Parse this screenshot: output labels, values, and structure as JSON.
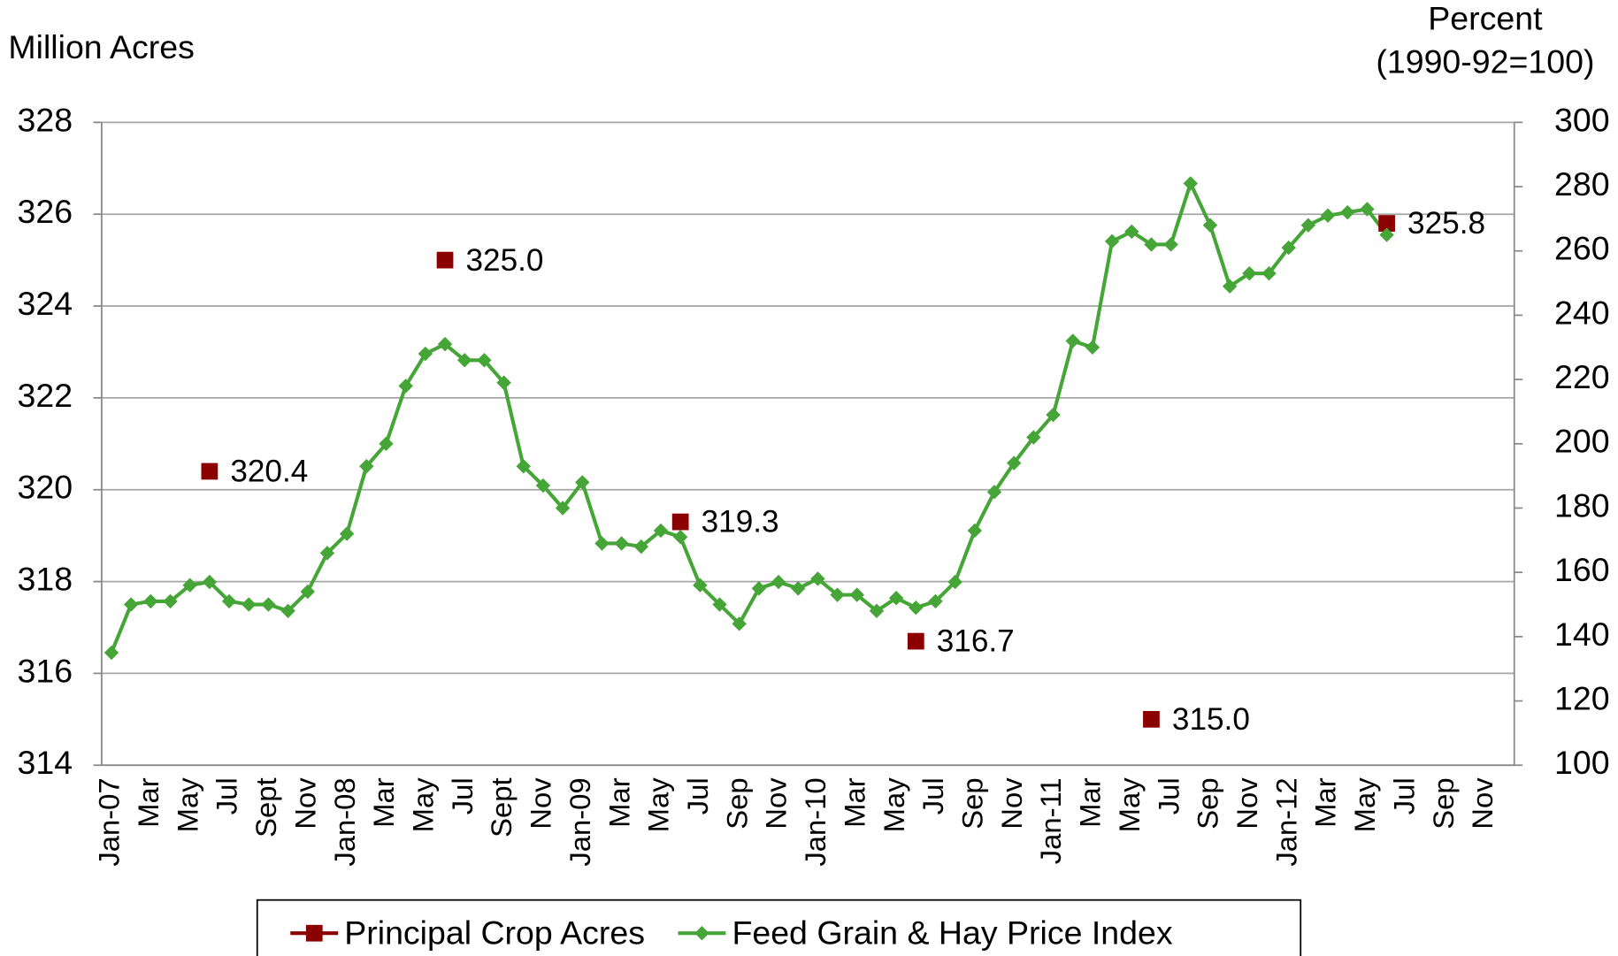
{
  "chart_data": {
    "type": "line",
    "y_label": "Million Acres",
    "y2_label": [
      "Percent",
      "(1990-92=100)"
    ],
    "categories": [
      "Jan-07",
      null,
      "Mar",
      null,
      "May",
      null,
      "Jul",
      null,
      "Sept",
      null,
      "Nov",
      null,
      "Jan-08",
      null,
      "Mar",
      null,
      "May",
      null,
      "Jul",
      null,
      "Sept",
      null,
      "Nov",
      null,
      "Jan-09",
      null,
      "Mar",
      null,
      "May",
      null,
      "Jul",
      null,
      "Sep",
      null,
      "Nov",
      null,
      "Jan-10",
      null,
      "Mar",
      null,
      "May",
      null,
      "Jul",
      null,
      "Sep",
      null,
      "Nov",
      null,
      "Jan-11",
      null,
      "Mar",
      null,
      "May",
      null,
      "Jul",
      null,
      "Sep",
      null,
      "Nov",
      null,
      "Jan-12",
      null,
      "Mar",
      null,
      "May",
      null,
      "Jul",
      null,
      "Sep",
      null,
      "Nov",
      null
    ],
    "series": [
      {
        "name": "Principal Crop Acres",
        "color": "#8b0000",
        "marker": "square",
        "values": [
          null,
          null,
          null,
          null,
          null,
          320.4,
          null,
          null,
          null,
          null,
          null,
          null,
          null,
          null,
          null,
          null,
          null,
          325.0,
          null,
          null,
          null,
          null,
          null,
          null,
          null,
          null,
          null,
          null,
          null,
          319.3,
          null,
          null,
          null,
          null,
          null,
          null,
          null,
          null,
          null,
          null,
          null,
          316.7,
          null,
          null,
          null,
          null,
          null,
          null,
          null,
          null,
          null,
          null,
          null,
          315.0,
          null,
          null,
          null,
          null,
          null,
          null,
          null,
          null,
          null,
          null,
          null,
          325.8,
          null,
          null,
          null,
          null,
          null,
          null
        ],
        "value_labels": [
          null,
          null,
          null,
          null,
          null,
          "320.4",
          null,
          null,
          null,
          null,
          null,
          null,
          null,
          null,
          null,
          null,
          null,
          "325.0",
          null,
          null,
          null,
          null,
          null,
          null,
          null,
          null,
          null,
          null,
          null,
          "319.3",
          null,
          null,
          null,
          null,
          null,
          null,
          null,
          null,
          null,
          null,
          null,
          "316.7",
          null,
          null,
          null,
          null,
          null,
          null,
          null,
          null,
          null,
          null,
          null,
          "315.0",
          null,
          null,
          null,
          null,
          null,
          null,
          null,
          null,
          null,
          null,
          null,
          "325.8",
          null,
          null,
          null,
          null,
          null,
          null
        ]
      },
      {
        "name": "Feed Grain & Hay Price Index",
        "color": "#45a537",
        "marker": "diamond",
        "axis": "y2",
        "values": [
          135,
          150,
          151,
          151,
          156,
          157,
          151,
          150,
          150,
          148,
          154,
          166,
          172,
          193,
          200,
          218,
          228,
          231,
          226,
          226,
          219,
          193,
          187,
          180,
          188,
          169,
          169,
          168,
          173,
          171,
          156,
          150,
          144,
          155,
          157,
          155,
          158,
          153,
          153,
          148,
          152,
          149,
          151,
          157,
          173,
          185,
          194,
          202,
          209,
          232,
          230,
          263,
          266,
          262,
          262,
          281,
          268,
          249,
          253,
          253,
          261,
          268,
          271,
          272,
          273,
          265,
          null,
          null,
          null,
          null,
          null,
          null
        ]
      }
    ],
    "ylim": [
      314,
      328
    ],
    "yticks": [
      314,
      316,
      318,
      320,
      322,
      324,
      326,
      328
    ],
    "y2lim": [
      100,
      300
    ],
    "y2ticks": [
      100,
      120,
      140,
      160,
      180,
      200,
      220,
      240,
      260,
      280,
      300
    ],
    "grid": true,
    "legend": "bottom"
  }
}
